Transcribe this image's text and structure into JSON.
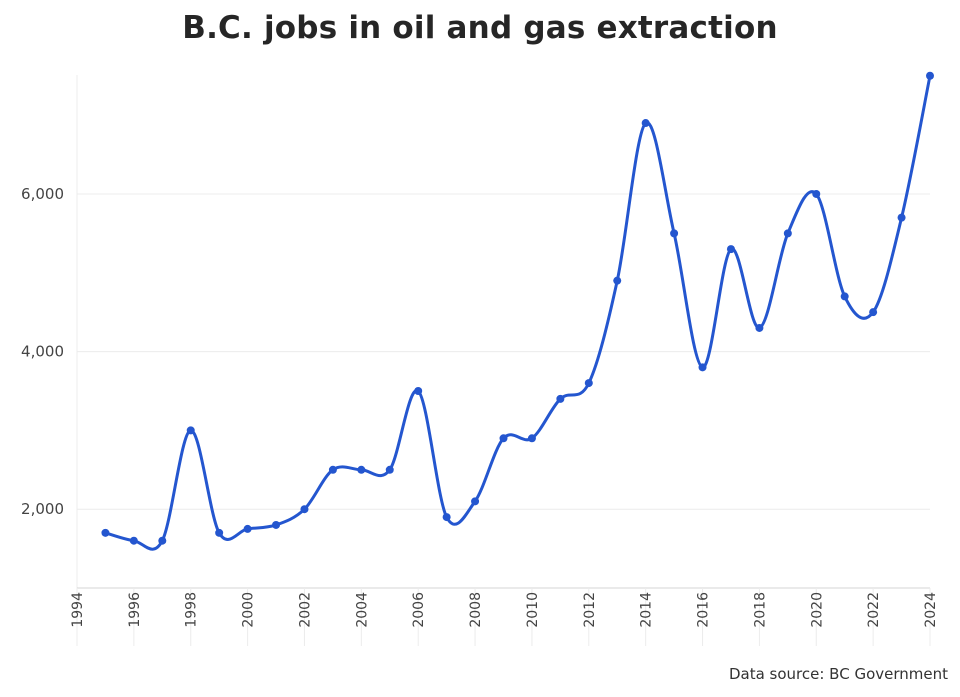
{
  "chart_data": {
    "type": "line",
    "title": "B.C. jobs in oil and gas extraction",
    "xlabel": "",
    "ylabel": "",
    "x": [
      1995,
      1996,
      1997,
      1998,
      1999,
      2000,
      2001,
      2002,
      2003,
      2004,
      2005,
      2006,
      2007,
      2008,
      2009,
      2010,
      2011,
      2012,
      2013,
      2014,
      2015,
      2016,
      2017,
      2018,
      2019,
      2020,
      2021,
      2022,
      2023,
      2024
    ],
    "series": [
      {
        "name": "",
        "color": "#2456cf",
        "values": [
          1700,
          1600,
          1600,
          3000,
          1700,
          1750,
          1800,
          2000,
          2500,
          2500,
          2500,
          3500,
          1900,
          2100,
          2900,
          2900,
          3400,
          3600,
          4900,
          6900,
          5500,
          3800,
          5300,
          4300,
          5500,
          6000,
          4700,
          4500,
          5700,
          7500
        ]
      }
    ],
    "xlim": [
      1994,
      2024
    ],
    "ylim": [
      1000,
      7700
    ],
    "y_ticks": [
      2000,
      4000,
      6000
    ],
    "y_tick_labels": [
      "2,000",
      "4,000",
      "6,000"
    ],
    "x_ticks": [
      1994,
      1996,
      1998,
      2000,
      2002,
      2004,
      2006,
      2008,
      2010,
      2012,
      2014,
      2016,
      2018,
      2020,
      2022,
      2024
    ],
    "x_tick_labels": [
      "1994",
      "1996",
      "1998",
      "2000",
      "2002",
      "2004",
      "2006",
      "2008",
      "2010",
      "2012",
      "2014",
      "2016",
      "2018",
      "2020",
      "2022",
      "2024"
    ],
    "grid": true,
    "legend": "none"
  },
  "source_note": "Data source: BC Government",
  "colors": {
    "line": "#2456cf",
    "grid": "#ececec",
    "axis_text": "#444444",
    "title": "#262626"
  }
}
